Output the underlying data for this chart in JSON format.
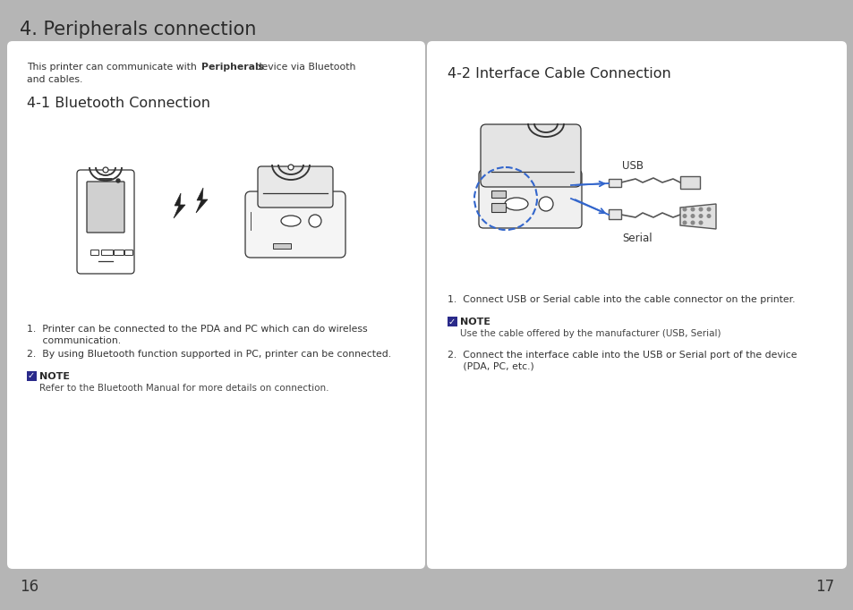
{
  "bg_color": "#b5b5b5",
  "panel_color": "#ffffff",
  "title": "4. Peripherals connection",
  "title_fontsize": 15,
  "title_color": "#2a2a2a",
  "left_panel": {
    "intro_line1": "This printer can communicate with Peripherals device via Bluetooth",
    "intro_bold": "Peripherals",
    "intro_line2": "and cables.",
    "section_title": "4-1 Bluetooth Connection",
    "item1_line1": "1.  Printer can be connected to the PDA and PC which can do wireless",
    "item1_line2": "     communication.",
    "item2": "2.  By using Bluetooth function supported in PC, printer can be connected.",
    "note_label": "NOTE",
    "note_text": "Refer to the Bluetooth Manual for more details on connection."
  },
  "right_panel": {
    "section_title": "4-2 Interface Cable Connection",
    "usb_label": "USB",
    "serial_label": "Serial",
    "item1": "1.  Connect USB or Serial cable into the cable connector on the printer.",
    "note_label": "NOTE",
    "note_text": "Use the cable offered by the manufacturer (USB, Serial)",
    "item2_line1": "2.  Connect the interface cable into the USB or Serial port of the device",
    "item2_line2": "     (PDA, PC, etc.)"
  },
  "page_left": "16",
  "page_right": "17",
  "check_color": "#2a2a8a",
  "blue_line_color": "#3366cc"
}
